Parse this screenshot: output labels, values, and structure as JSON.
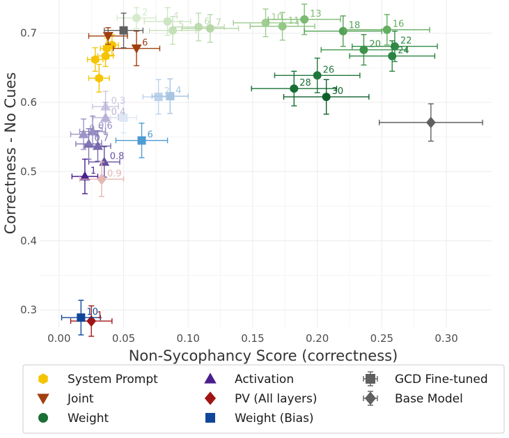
{
  "chart_data": {
    "type": "scatter",
    "xlabel": "Non-Sycophancy Score (correctness)",
    "ylabel": "Correctness - No Cues",
    "xlim": [
      -0.015,
      0.335
    ],
    "ylim": [
      0.275,
      0.748
    ],
    "xticks": [
      "0.00",
      "0.05",
      "0.10",
      "0.15",
      "0.20",
      "0.25",
      "0.30"
    ],
    "yticks": [
      "0.3",
      "0.4",
      "0.5",
      "0.6",
      "0.7"
    ],
    "grid": true,
    "legend_position": "bottom",
    "series": [
      {
        "name": "System Prompt",
        "shape": "hexagon",
        "color": "#f5c400",
        "points": [
          {
            "x": 0.037,
            "y": 0.678,
            "xerr": 0.005,
            "yerr": 0.015,
            "label": ""
          },
          {
            "x": 0.041,
            "y": 0.683,
            "xerr": 0.005,
            "yerr": 0.015,
            "label": ""
          },
          {
            "x": 0.036,
            "y": 0.667,
            "xerr": 0.006,
            "yerr": 0.015,
            "label": ""
          },
          {
            "x": 0.028,
            "y": 0.662,
            "xerr": 0.006,
            "yerr": 0.017,
            "label": ""
          },
          {
            "x": 0.031,
            "y": 0.635,
            "xerr": 0.008,
            "yerr": 0.02,
            "label": ""
          }
        ]
      },
      {
        "name": "Joint",
        "shape": "triangle-down",
        "color": "#a0400e",
        "points": [
          {
            "x": 0.06,
            "y": 0.678,
            "xerr": 0.018,
            "yerr": 0.025,
            "label": "6"
          },
          {
            "x": 0.038,
            "y": 0.696,
            "xerr": 0.015,
            "yerr": 0.012,
            "label": ""
          }
        ]
      },
      {
        "name": "Weight",
        "shape": "circle",
        "color": "#1b6e35",
        "points": [
          {
            "x": 0.06,
            "y": 0.722,
            "xerr": 0.015,
            "yerr": 0.015,
            "label": "2",
            "color": "#d6ebcc"
          },
          {
            "x": 0.084,
            "y": 0.717,
            "xerr": 0.018,
            "yerr": 0.02,
            "label": "4",
            "color": "#cde5c2"
          },
          {
            "x": 0.088,
            "y": 0.704,
            "xerr": 0.018,
            "yerr": 0.02,
            "label": "5",
            "color": "#c6e1b9"
          },
          {
            "x": 0.108,
            "y": 0.709,
            "xerr": 0.02,
            "yerr": 0.02,
            "label": "6",
            "color": "#bfdcb1"
          },
          {
            "x": 0.117,
            "y": 0.707,
            "xerr": 0.022,
            "yerr": 0.02,
            "label": "7",
            "color": "#b5d7a6"
          },
          {
            "x": 0.16,
            "y": 0.715,
            "xerr": 0.025,
            "yerr": 0.02,
            "label": "10",
            "color": "#a1cd92"
          },
          {
            "x": 0.173,
            "y": 0.71,
            "xerr": 0.025,
            "yerr": 0.02,
            "label": "11",
            "color": "#95c786"
          },
          {
            "x": 0.19,
            "y": 0.72,
            "xerr": 0.028,
            "yerr": 0.022,
            "label": "13",
            "color": "#7cba72"
          },
          {
            "x": 0.22,
            "y": 0.703,
            "xerr": 0.03,
            "yerr": 0.022,
            "label": "18",
            "color": "#53a157"
          },
          {
            "x": 0.254,
            "y": 0.705,
            "xerr": 0.033,
            "yerr": 0.022,
            "label": "16",
            "color": "#64ae5f"
          },
          {
            "x": 0.26,
            "y": 0.681,
            "xerr": 0.033,
            "yerr": 0.022,
            "label": "22",
            "color": "#2f8a46"
          },
          {
            "x": 0.236,
            "y": 0.676,
            "xerr": 0.033,
            "yerr": 0.022,
            "label": "20",
            "color": "#3d9249"
          },
          {
            "x": 0.258,
            "y": 0.667,
            "xerr": 0.033,
            "yerr": 0.022,
            "label": "24",
            "color": "#2a8441"
          },
          {
            "x": 0.2,
            "y": 0.639,
            "xerr": 0.033,
            "yerr": 0.025,
            "label": "26",
            "color": "#20773a"
          },
          {
            "x": 0.182,
            "y": 0.62,
            "xerr": 0.033,
            "yerr": 0.025,
            "label": "28",
            "color": "#176f34"
          },
          {
            "x": 0.207,
            "y": 0.608,
            "xerr": 0.033,
            "yerr": 0.025,
            "label": "30",
            "color": "#0f5f2b"
          }
        ]
      },
      {
        "name": "Activation",
        "shape": "triangle-up",
        "color": "#4a1f8c",
        "points": [
          {
            "x": 0.036,
            "y": 0.594,
            "xerr": 0.01,
            "yerr": 0.022,
            "label": "0.3",
            "color": "#c9c5e1"
          },
          {
            "x": 0.036,
            "y": 0.578,
            "xerr": 0.01,
            "yerr": 0.022,
            "label": "0.4",
            "color": "#b9b3d9"
          },
          {
            "x": 0.019,
            "y": 0.554,
            "xerr": 0.01,
            "yerr": 0.022,
            "label": "0.5",
            "color": "#9d94c6"
          },
          {
            "x": 0.026,
            "y": 0.558,
            "xerr": 0.01,
            "yerr": 0.022,
            "label": "0.6",
            "color": "#958cc2"
          },
          {
            "x": 0.023,
            "y": 0.54,
            "xerr": 0.01,
            "yerr": 0.022,
            "label": "0.7",
            "color": "#8276b5"
          },
          {
            "x": 0.03,
            "y": 0.537,
            "xerr": 0.01,
            "yerr": 0.022,
            "label": "",
            "color": "#7868ad"
          },
          {
            "x": 0.035,
            "y": 0.514,
            "xerr": 0.012,
            "yerr": 0.022,
            "label": "0.8",
            "color": "#6650a3"
          },
          {
            "x": 0.02,
            "y": 0.493,
            "xerr": 0.01,
            "yerr": 0.025,
            "label": "1",
            "color": "#4a1f8c"
          }
        ]
      },
      {
        "name": "PV (All layers)",
        "shape": "diamond",
        "color": "#a01414",
        "points": [
          {
            "x": 0.033,
            "y": 0.489,
            "xerr": 0.017,
            "yerr": 0.025,
            "label": "0.9",
            "color": "#e5b8b3"
          },
          {
            "x": 0.025,
            "y": 0.284,
            "xerr": 0.016,
            "yerr": 0.022,
            "label": "1",
            "color": "#a01414"
          }
        ]
      },
      {
        "name": "Weight (Bias)",
        "shape": "square",
        "color": "#10469a",
        "points": [
          {
            "x": 0.05,
            "y": 0.578,
            "xerr": 0.01,
            "yerr": 0.022,
            "label": "",
            "color": "#dde8f4"
          },
          {
            "x": 0.077,
            "y": 0.608,
            "xerr": 0.012,
            "yerr": 0.025,
            "label": "2",
            "color": "#bcd2ea"
          },
          {
            "x": 0.086,
            "y": 0.609,
            "xerr": 0.014,
            "yerr": 0.025,
            "label": "4",
            "color": "#a7c5e3"
          },
          {
            "x": 0.064,
            "y": 0.545,
            "xerr": 0.02,
            "yerr": 0.025,
            "label": "6",
            "color": "#4d9bd3"
          },
          {
            "x": 0.017,
            "y": 0.289,
            "xerr": 0.015,
            "yerr": 0.025,
            "label": "10",
            "color": "#10469a"
          }
        ]
      },
      {
        "name": "GCD Fine-tuned",
        "shape": "square",
        "color": "#606060",
        "errorbars": true,
        "points": [
          {
            "x": 0.05,
            "y": 0.704,
            "xerr": 0.015,
            "yerr": 0.025,
            "label": ""
          }
        ]
      },
      {
        "name": "Base Model",
        "shape": "diamond",
        "color": "#606060",
        "errorbars": true,
        "points": [
          {
            "x": 0.288,
            "y": 0.571,
            "xerr": 0.04,
            "yerr": 0.027,
            "label": ""
          }
        ]
      }
    ]
  }
}
